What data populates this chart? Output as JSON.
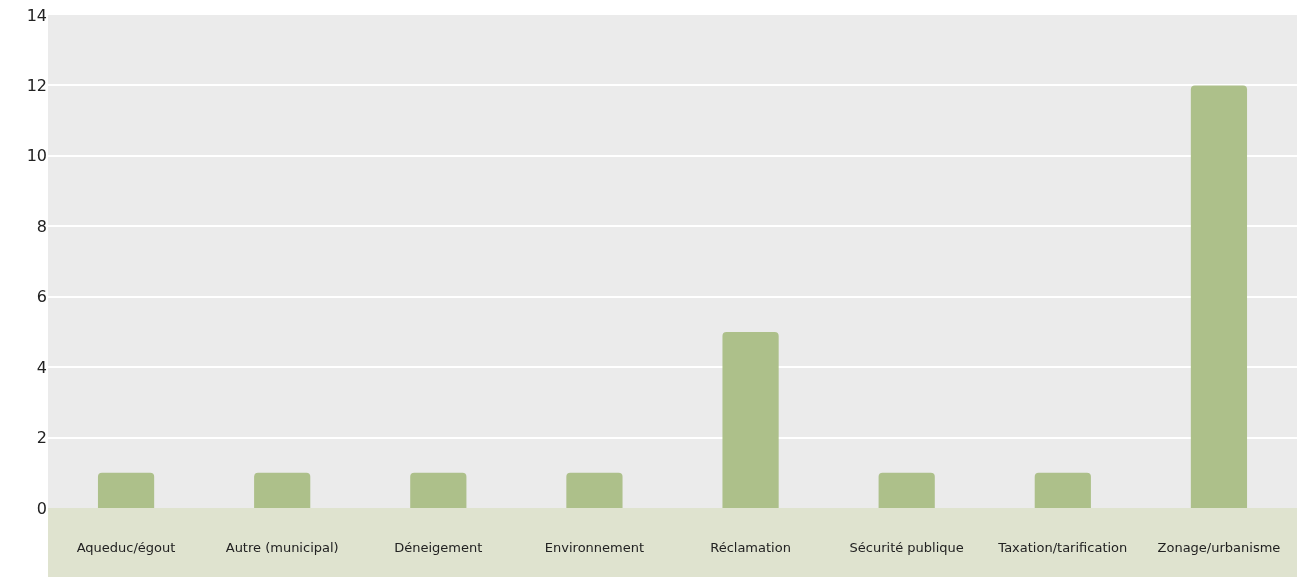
{
  "chart_data": {
    "type": "bar",
    "categories": [
      "Aqueduc/égout",
      "Autre (municipal)",
      "Déneigement",
      "Environnement",
      "Réclamation",
      "Sécurité publique",
      "Taxation/tarification",
      "Zonage/urbanisme"
    ],
    "values": [
      1,
      1,
      1,
      1,
      5,
      1,
      1,
      12
    ],
    "color": "#adc08a",
    "ylim": [
      0,
      14
    ],
    "yticks": [
      0,
      2,
      4,
      6,
      8,
      10,
      12,
      14
    ],
    "grid": "y"
  }
}
